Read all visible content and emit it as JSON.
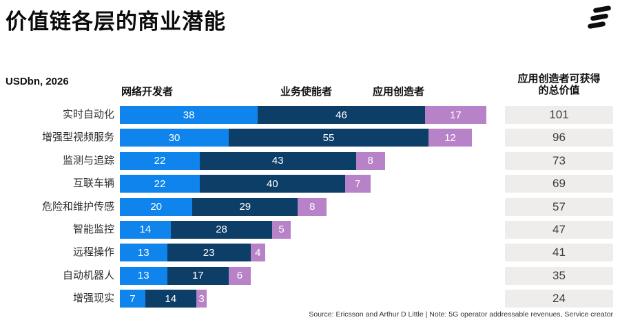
{
  "title": "价值链各层的商业潜能",
  "unit_label": "USDbn, 2026",
  "logo_name": "ericsson-logo",
  "colors": {
    "network_developers": "#0f84ec",
    "service_enablers": "#0d3e68",
    "application_creators": "#b882c8",
    "total_box_bg": "#efedec"
  },
  "chart_data": {
    "type": "bar",
    "orientation": "horizontal",
    "stacked": true,
    "title": "价值链各层的商业潜能",
    "value_unit": "USDbn, 2026",
    "xlim": [
      0,
      101
    ],
    "grid": false,
    "legend_position": "top-as-column-headers",
    "categories": [
      "实时自动化",
      "增强型视频服务",
      "监测与追踪",
      "互联车辆",
      "危险和维护传感",
      "智能监控",
      "远程操作",
      "自动机器人",
      "增强现实"
    ],
    "series": [
      {
        "name": "网络开发者",
        "key": "network-developers",
        "color": "#0f84ec",
        "values": [
          38,
          30,
          22,
          22,
          20,
          14,
          13,
          13,
          7
        ]
      },
      {
        "name": "业务使能者",
        "key": "service-enablers",
        "color": "#0d3e68",
        "values": [
          46,
          55,
          43,
          40,
          29,
          28,
          23,
          17,
          14
        ]
      },
      {
        "name": "应用创造者",
        "key": "application-creators",
        "color": "#b882c8",
        "values": [
          17,
          12,
          8,
          7,
          8,
          5,
          4,
          6,
          3
        ]
      }
    ],
    "totals": {
      "header_line1": "应用创造者可获得",
      "header_line2": "的总价值",
      "values": [
        101,
        96,
        73,
        69,
        57,
        47,
        41,
        35,
        24
      ]
    }
  },
  "footer": {
    "text": "Source: Ericsson and Arthur D Little   |  Note: 5G operator addressable revenues, Service creator"
  }
}
